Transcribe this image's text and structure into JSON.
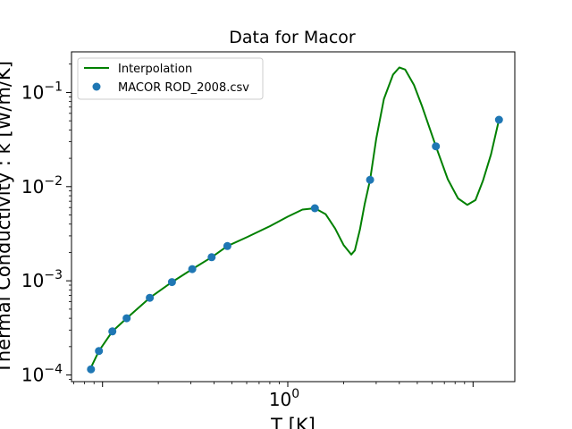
{
  "chart_data": {
    "type": "line",
    "title": "Data for Macor",
    "xlabel": "T [K]",
    "ylabel": "Thermal Conductivity : k [W/m/K]",
    "xscale": "log",
    "yscale": "log",
    "xlim": [
      0.068,
      16.8
    ],
    "ylim": [
      8.5e-05,
      0.27
    ],
    "x_tick_labels": [
      {
        "value": 1,
        "base": "10",
        "exp": "0"
      }
    ],
    "y_tick_labels": [
      {
        "value": 0.0001,
        "base": "10",
        "exp": "−4"
      },
      {
        "value": 0.001,
        "base": "10",
        "exp": "−3"
      },
      {
        "value": 0.01,
        "base": "10",
        "exp": "−2"
      },
      {
        "value": 0.1,
        "base": "10",
        "exp": "−1"
      }
    ],
    "legend": {
      "location": "upper-left",
      "entries": [
        "Interpolation",
        "MACOR ROD_2008.csv"
      ]
    },
    "series": [
      {
        "name": "MACOR ROD_2008.csv",
        "kind": "scatter",
        "color": "#1f77b4",
        "x": [
          0.0866,
          0.0956,
          0.113,
          0.135,
          0.18,
          0.237,
          0.305,
          0.388,
          0.472,
          1.4,
          2.78,
          6.3,
          13.8
        ],
        "y": [
          0.000115,
          0.00018,
          0.00029,
          0.0004,
          0.00066,
          0.00097,
          0.00133,
          0.00178,
          0.00234,
          0.0059,
          0.0118,
          0.0268,
          0.0513
        ]
      },
      {
        "name": "Interpolation",
        "kind": "line",
        "color": "#008000",
        "x": [
          0.0866,
          0.0956,
          0.113,
          0.135,
          0.18,
          0.237,
          0.305,
          0.388,
          0.472,
          0.6,
          0.8,
          1.0,
          1.2,
          1.4,
          1.6,
          1.8,
          2.0,
          2.2,
          2.3,
          2.45,
          2.6,
          2.78,
          3.0,
          3.3,
          3.7,
          4.0,
          4.3,
          4.8,
          5.3,
          6.3,
          7.3,
          8.3,
          9.3,
          10.3,
          11.3,
          12.5,
          13.8
        ],
        "y": [
          0.00012,
          0.00018,
          0.00029,
          0.0004,
          0.00066,
          0.00097,
          0.00133,
          0.00178,
          0.00234,
          0.0029,
          0.0038,
          0.0048,
          0.0057,
          0.0059,
          0.0051,
          0.0036,
          0.0024,
          0.0019,
          0.0021,
          0.0035,
          0.0065,
          0.0118,
          0.032,
          0.085,
          0.155,
          0.184,
          0.175,
          0.12,
          0.072,
          0.0268,
          0.012,
          0.0075,
          0.0064,
          0.0072,
          0.0115,
          0.022,
          0.0513
        ]
      }
    ]
  }
}
